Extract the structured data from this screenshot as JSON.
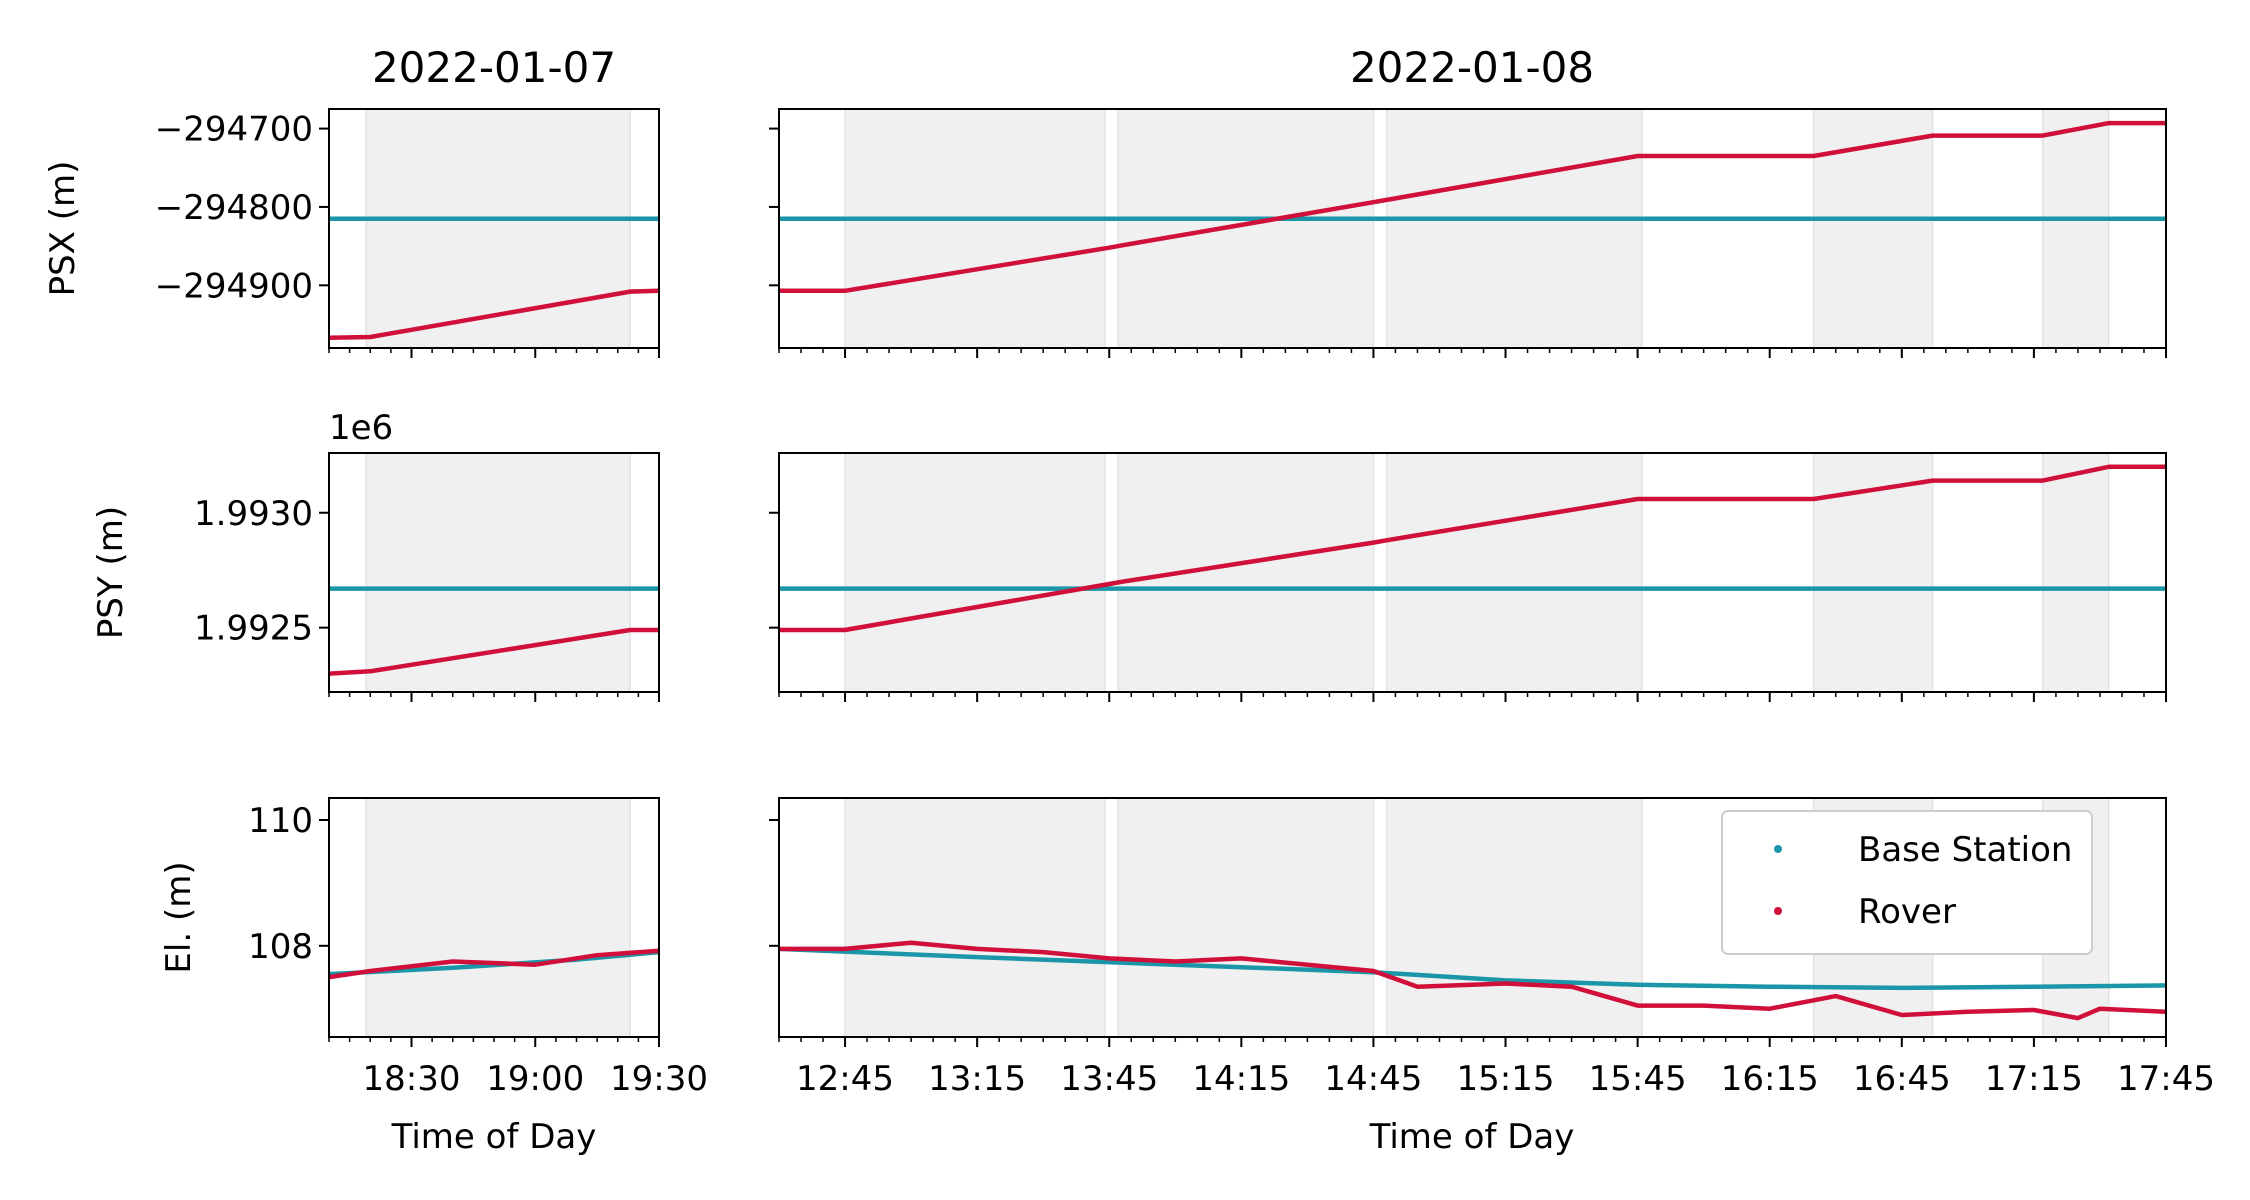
{
  "colors": {
    "base_station": "#1a96a8",
    "rover": "#d0103a",
    "shade": "#f0f0f0",
    "shade_edge": "#e2e2e2"
  },
  "chart_data": {
    "type": "line",
    "date_left": "2022-01-07",
    "date_right": "2022-01-08",
    "xlabel": "Time of Day",
    "legend": {
      "placement": "upper-right",
      "entries": [
        "Base Station",
        "Rover"
      ]
    },
    "left_x_range": [
      "18:10",
      "19:30"
    ],
    "right_x_range": [
      "12:30",
      "17:45"
    ],
    "left_x_ticks": [
      "18:30",
      "19:00",
      "19:30"
    ],
    "right_x_ticks": [
      "12:45",
      "13:15",
      "13:45",
      "14:15",
      "14:45",
      "15:15",
      "15:45",
      "16:15",
      "16:45",
      "17:15",
      "17:45"
    ],
    "left_shaded_periods": [
      [
        "18:19",
        "19:23"
      ]
    ],
    "right_shaded_periods": [
      [
        "12:45",
        "13:44"
      ],
      [
        "13:47",
        "14:45"
      ],
      [
        "14:48",
        "15:46"
      ],
      [
        "16:25",
        "16:52"
      ],
      [
        "17:17",
        "17:32"
      ]
    ],
    "panels": [
      {
        "ylabel": "PSX (m)",
        "offset_label": "",
        "ylim": [
          -294980,
          -294675
        ],
        "yticks": [
          -294700,
          -294800,
          -294900
        ],
        "ytick_labels": [
          "−294700",
          "−294800",
          "−294900"
        ],
        "base_station": {
          "name": "Base Station",
          "value": -294815
        },
        "rover": {
          "name": "Rover",
          "left": {
            "x": [
              "18:10",
              "18:20",
              "19:23",
              "19:30"
            ],
            "y": [
              -294967,
              -294966,
              -294908,
              -294907
            ]
          },
          "right": {
            "x": [
              "12:30",
              "12:45",
              "13:45",
              "13:48",
              "14:45",
              "14:48",
              "15:45",
              "16:25",
              "16:52",
              "17:17",
              "17:32",
              "17:45"
            ],
            "y": [
              -294907,
              -294907,
              -294852,
              -294849,
              -294794,
              -294791,
              -294735,
              -294735,
              -294709,
              -294709,
              -294693,
              -294693
            ]
          }
        }
      },
      {
        "ylabel": "PSY (m)",
        "offset_label": "1e6",
        "ylim": [
          1.99222,
          1.99326
        ],
        "yticks": [
          1.993,
          1.9925
        ],
        "ytick_labels": [
          "1.9930",
          "1.9925"
        ],
        "base_station": {
          "name": "Base Station",
          "value": 1.99267
        },
        "rover": {
          "name": "Rover",
          "left": {
            "x": [
              "18:10",
              "18:20",
              "19:23",
              "19:30"
            ],
            "y": [
              1.9923,
              1.99231,
              1.99249,
              1.99249
            ]
          },
          "right": {
            "x": [
              "12:30",
              "12:45",
              "13:45",
              "13:48",
              "14:45",
              "14:48",
              "15:45",
              "16:25",
              "16:52",
              "17:17",
              "17:32",
              "17:45"
            ],
            "y": [
              1.99249,
              1.99249,
              1.99269,
              1.9927,
              1.99287,
              1.99288,
              1.99306,
              1.99306,
              1.99314,
              1.99314,
              1.9932,
              1.9932
            ]
          }
        }
      },
      {
        "ylabel": "El. (m)",
        "offset_label": "",
        "ylim": [
          106.55,
          110.35
        ],
        "yticks": [
          110,
          108
        ],
        "ytick_labels": [
          "110",
          "108"
        ],
        "base_station": {
          "name": "Base Station",
          "left": {
            "x": [
              "18:10",
              "18:40",
              "19:10",
              "19:30"
            ],
            "y": [
              107.55,
              107.65,
              107.78,
              107.9
            ]
          },
          "right": {
            "x": [
              "12:30",
              "13:15",
              "14:00",
              "14:45",
              "15:15",
              "15:45",
              "16:15",
              "16:45",
              "17:15",
              "17:45"
            ],
            "y": [
              107.95,
              107.82,
              107.7,
              107.58,
              107.45,
              107.38,
              107.35,
              107.33,
              107.35,
              107.37
            ]
          }
        },
        "rover": {
          "name": "Rover",
          "left": {
            "x": [
              "18:10",
              "18:20",
              "18:40",
              "19:00",
              "19:15",
              "19:30"
            ],
            "y": [
              107.5,
              107.6,
              107.75,
              107.7,
              107.85,
              107.92
            ]
          },
          "right": {
            "x": [
              "12:30",
              "12:45",
              "13:00",
              "13:15",
              "13:30",
              "13:45",
              "14:00",
              "14:15",
              "14:30",
              "14:45",
              "14:55",
              "15:15",
              "15:30",
              "15:45",
              "16:00",
              "16:15",
              "16:30",
              "16:45",
              "17:00",
              "17:15",
              "17:25",
              "17:30",
              "17:45"
            ],
            "y": [
              107.95,
              107.95,
              108.05,
              107.95,
              107.9,
              107.8,
              107.75,
              107.8,
              107.7,
              107.6,
              107.35,
              107.4,
              107.35,
              107.05,
              107.05,
              107.0,
              107.2,
              106.9,
              106.95,
              106.98,
              106.85,
              107.0,
              106.95
            ]
          }
        }
      }
    ]
  }
}
